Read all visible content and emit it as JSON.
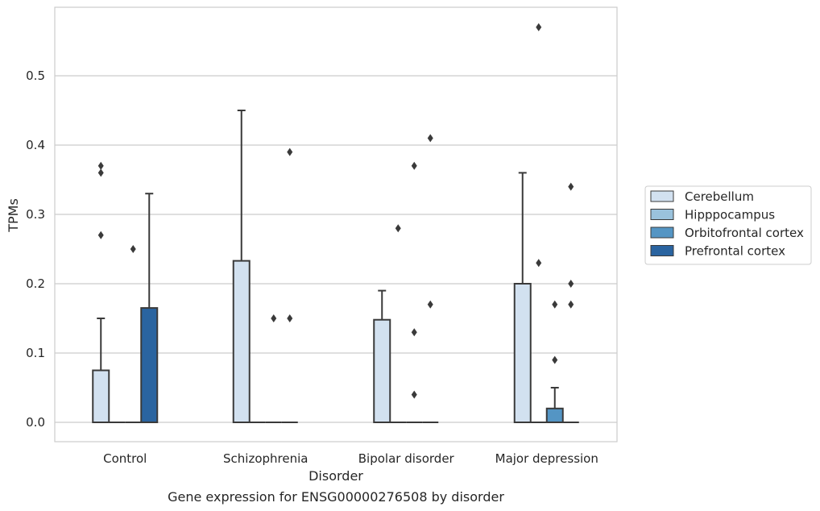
{
  "caption": "Gene expression for ENSG00000276508 by disorder",
  "chart_data": {
    "type": "box",
    "xlabel": "Disorder",
    "ylabel": "TPMs",
    "ylim": [
      -0.028,
      0.6
    ],
    "yticks": [
      "0.0",
      "0.1",
      "0.2",
      "0.3",
      "0.4",
      "0.5"
    ],
    "grid": true,
    "legend_position": "right",
    "categories": [
      "Control",
      "Schizophrenia",
      "Bipolar disorder",
      "Major depression"
    ],
    "series": [
      {
        "name": "Cerebellum",
        "color": "#d2e1f0",
        "boxes": [
          {
            "q1": 0.0,
            "median": 0.0,
            "q3": 0.075,
            "whisker_low": 0.0,
            "whisker_high": 0.15,
            "outliers": [
              0.27,
              0.36,
              0.37
            ]
          },
          {
            "q1": 0.0,
            "median": 0.0,
            "q3": 0.233,
            "whisker_low": 0.0,
            "whisker_high": 0.45,
            "outliers": []
          },
          {
            "q1": 0.0,
            "median": 0.0,
            "q3": 0.148,
            "whisker_low": 0.0,
            "whisker_high": 0.19,
            "outliers": []
          },
          {
            "q1": 0.0,
            "median": 0.0,
            "q3": 0.2,
            "whisker_low": 0.0,
            "whisker_high": 0.36,
            "outliers": []
          }
        ]
      },
      {
        "name": "Hipppocampus",
        "color": "#9ac2dc",
        "boxes": [
          {
            "q1": 0.0,
            "median": 0.0,
            "q3": 0.0,
            "whisker_low": 0.0,
            "whisker_high": 0.0,
            "outliers": []
          },
          {
            "q1": 0.0,
            "median": 0.0,
            "q3": 0.0,
            "whisker_low": 0.0,
            "whisker_high": 0.0,
            "outliers": []
          },
          {
            "q1": 0.0,
            "median": 0.0,
            "q3": 0.0,
            "whisker_low": 0.0,
            "whisker_high": 0.0,
            "outliers": [
              0.28
            ]
          },
          {
            "q1": 0.0,
            "median": 0.0,
            "q3": 0.0,
            "whisker_low": 0.0,
            "whisker_high": 0.0,
            "outliers": [
              0.23,
              0.57
            ]
          }
        ]
      },
      {
        "name": "Orbitofrontal cortex",
        "color": "#5495c4",
        "boxes": [
          {
            "q1": 0.0,
            "median": 0.0,
            "q3": 0.0,
            "whisker_low": 0.0,
            "whisker_high": 0.0,
            "outliers": [
              0.25
            ]
          },
          {
            "q1": 0.0,
            "median": 0.0,
            "q3": 0.0,
            "whisker_low": 0.0,
            "whisker_high": 0.0,
            "outliers": [
              0.15
            ]
          },
          {
            "q1": 0.0,
            "median": 0.0,
            "q3": 0.0,
            "whisker_low": 0.0,
            "whisker_high": 0.0,
            "outliers": [
              0.04,
              0.13,
              0.37
            ]
          },
          {
            "q1": 0.0,
            "median": 0.0,
            "q3": 0.02,
            "whisker_low": 0.0,
            "whisker_high": 0.05,
            "outliers": [
              0.09,
              0.17
            ]
          }
        ]
      },
      {
        "name": "Prefrontal cortex",
        "color": "#2a64a0",
        "boxes": [
          {
            "q1": 0.0,
            "median": 0.0,
            "q3": 0.165,
            "whisker_low": 0.0,
            "whisker_high": 0.33,
            "outliers": []
          },
          {
            "q1": 0.0,
            "median": 0.0,
            "q3": 0.0,
            "whisker_low": 0.0,
            "whisker_high": 0.0,
            "outliers": [
              0.15,
              0.39
            ]
          },
          {
            "q1": 0.0,
            "median": 0.0,
            "q3": 0.0,
            "whisker_low": 0.0,
            "whisker_high": 0.0,
            "outliers": [
              0.17,
              0.41
            ]
          },
          {
            "q1": 0.0,
            "median": 0.0,
            "q3": 0.0,
            "whisker_low": 0.0,
            "whisker_high": 0.0,
            "outliers": [
              0.17,
              0.2,
              0.34
            ]
          }
        ]
      }
    ]
  }
}
